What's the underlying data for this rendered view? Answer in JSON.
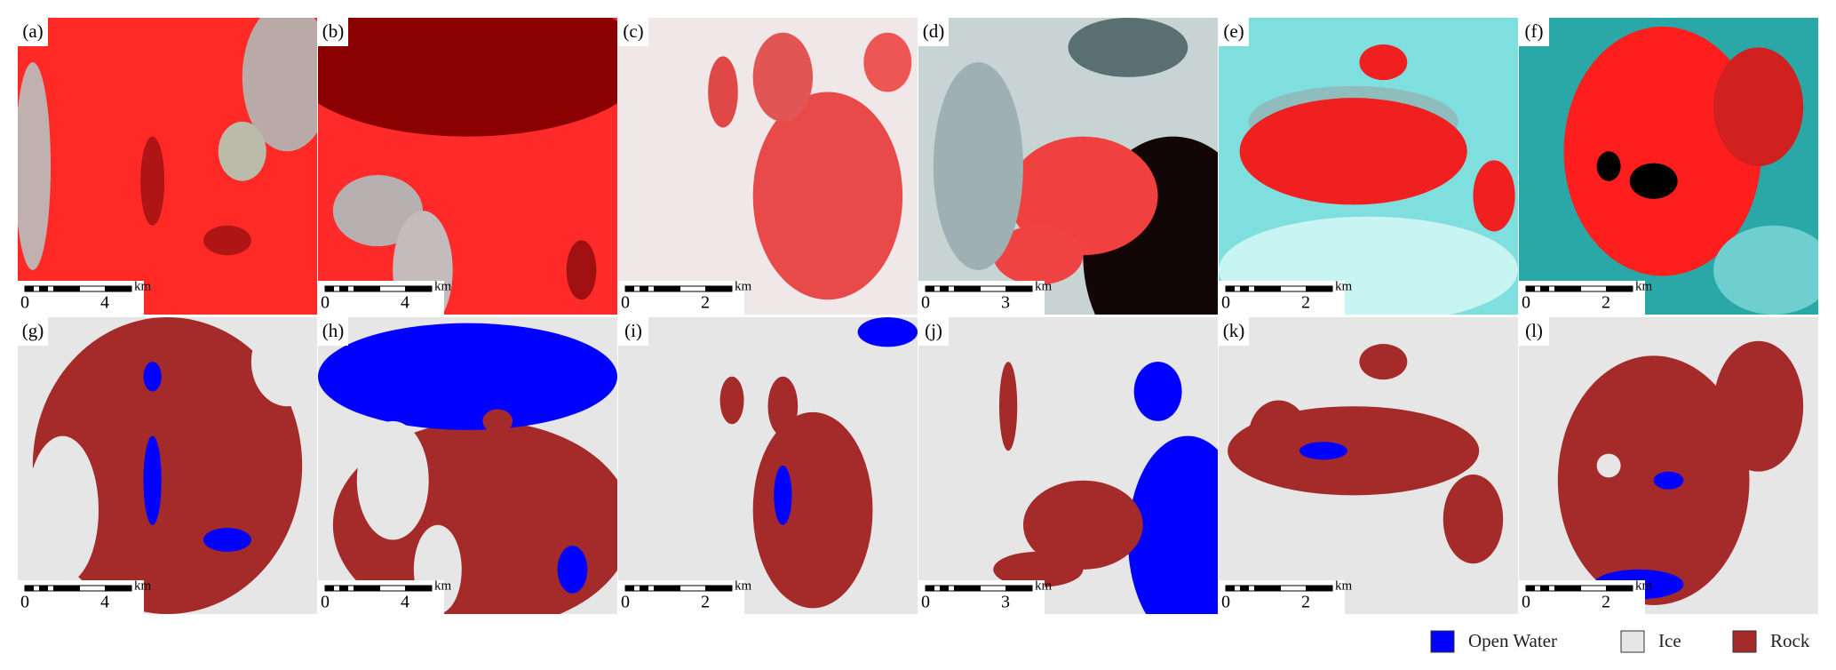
{
  "panels": [
    {
      "label": "(a)",
      "scale_start": "0",
      "scale_end": "4",
      "scale_unit": "km"
    },
    {
      "label": "(b)",
      "scale_start": "0",
      "scale_end": "4",
      "scale_unit": "km"
    },
    {
      "label": "(c)",
      "scale_start": "0",
      "scale_end": "2",
      "scale_unit": "km"
    },
    {
      "label": "(d)",
      "scale_start": "0",
      "scale_end": "3",
      "scale_unit": "km"
    },
    {
      "label": "(e)",
      "scale_start": "0",
      "scale_end": "2",
      "scale_unit": "km"
    },
    {
      "label": "(f)",
      "scale_start": "0",
      "scale_end": "2",
      "scale_unit": "km"
    },
    {
      "label": "(g)",
      "scale_start": "0",
      "scale_end": "4",
      "scale_unit": "km"
    },
    {
      "label": "(h)",
      "scale_start": "0",
      "scale_end": "4",
      "scale_unit": "km"
    },
    {
      "label": "(i)",
      "scale_start": "0",
      "scale_end": "2",
      "scale_unit": "km"
    },
    {
      "label": "(j)",
      "scale_start": "0",
      "scale_end": "3",
      "scale_unit": "km"
    },
    {
      "label": "(k)",
      "scale_start": "0",
      "scale_end": "2",
      "scale_unit": "km"
    },
    {
      "label": "(l)",
      "scale_start": "0",
      "scale_end": "2",
      "scale_unit": "km"
    }
  ],
  "legend": [
    {
      "label": "Open Water",
      "color": "#0000ff"
    },
    {
      "label": "Ice",
      "color": "#e6e6e6"
    },
    {
      "label": "Rock",
      "color": "#a52a2a"
    }
  ]
}
